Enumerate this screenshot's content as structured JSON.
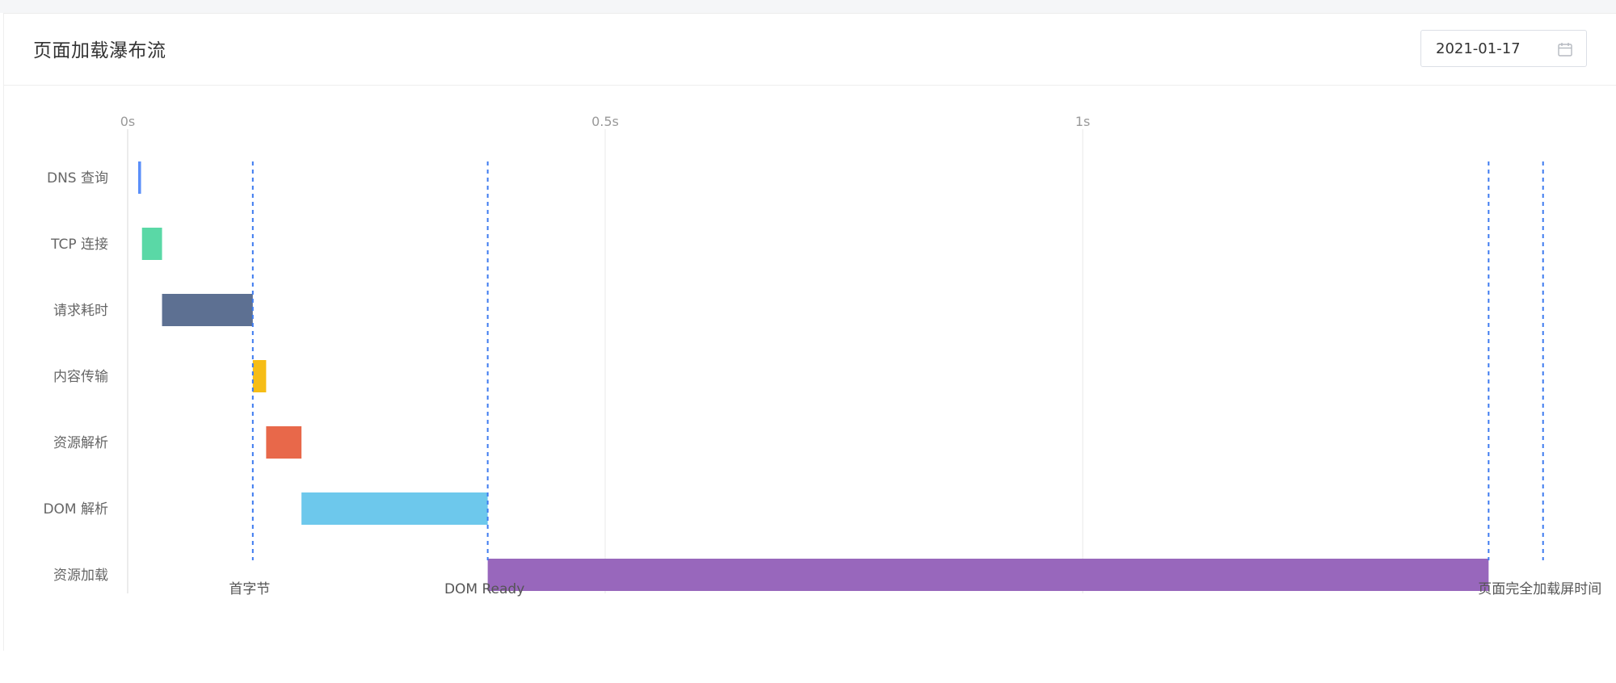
{
  "card": {
    "title": "页面加载瀑布流"
  },
  "date_picker": {
    "value": "2021-01-17",
    "icon": "calendar-icon"
  },
  "chart_data": {
    "type": "bar",
    "orientation": "horizontal-waterfall",
    "categories": [
      "DNS 查询",
      "TCP 连接",
      "请求耗时",
      "内容传输",
      "资源解析",
      "DOM 解析",
      "资源加载"
    ],
    "series": [
      {
        "segments": [
          {
            "category": "DNS 查询",
            "start": 0.011,
            "end": 0.014,
            "color": "#5b8ff9"
          },
          {
            "category": "TCP 连接",
            "start": 0.015,
            "end": 0.036,
            "color": "#5ad8a6"
          },
          {
            "category": "请求耗时",
            "start": 0.036,
            "end": 0.131,
            "color": "#5d7092"
          },
          {
            "category": "内容传输",
            "start": 0.131,
            "end": 0.145,
            "color": "#f6bd16"
          },
          {
            "category": "资源解析",
            "start": 0.145,
            "end": 0.182,
            "color": "#e8684a"
          },
          {
            "category": "DOM 解析",
            "start": 0.182,
            "end": 0.377,
            "color": "#6dc8ec"
          },
          {
            "category": "资源加载",
            "start": 0.377,
            "end": 1.425,
            "color": "#9867bc"
          }
        ]
      }
    ],
    "x_ticks": [
      {
        "value": 0,
        "label": "0s"
      },
      {
        "value": 0.5,
        "label": "0.5s"
      },
      {
        "value": 1,
        "label": "1s"
      }
    ],
    "xlim": [
      0,
      1.5
    ],
    "markers": [
      {
        "value": 0.131,
        "label": "首字节"
      },
      {
        "value": 0.377,
        "label": "DOM Ready"
      },
      {
        "value": 1.425,
        "label": ""
      },
      {
        "value": 1.482,
        "label": "页面完全加载屏时间"
      }
    ],
    "grid": "vertical",
    "marker_color": "#3e7bf0"
  }
}
